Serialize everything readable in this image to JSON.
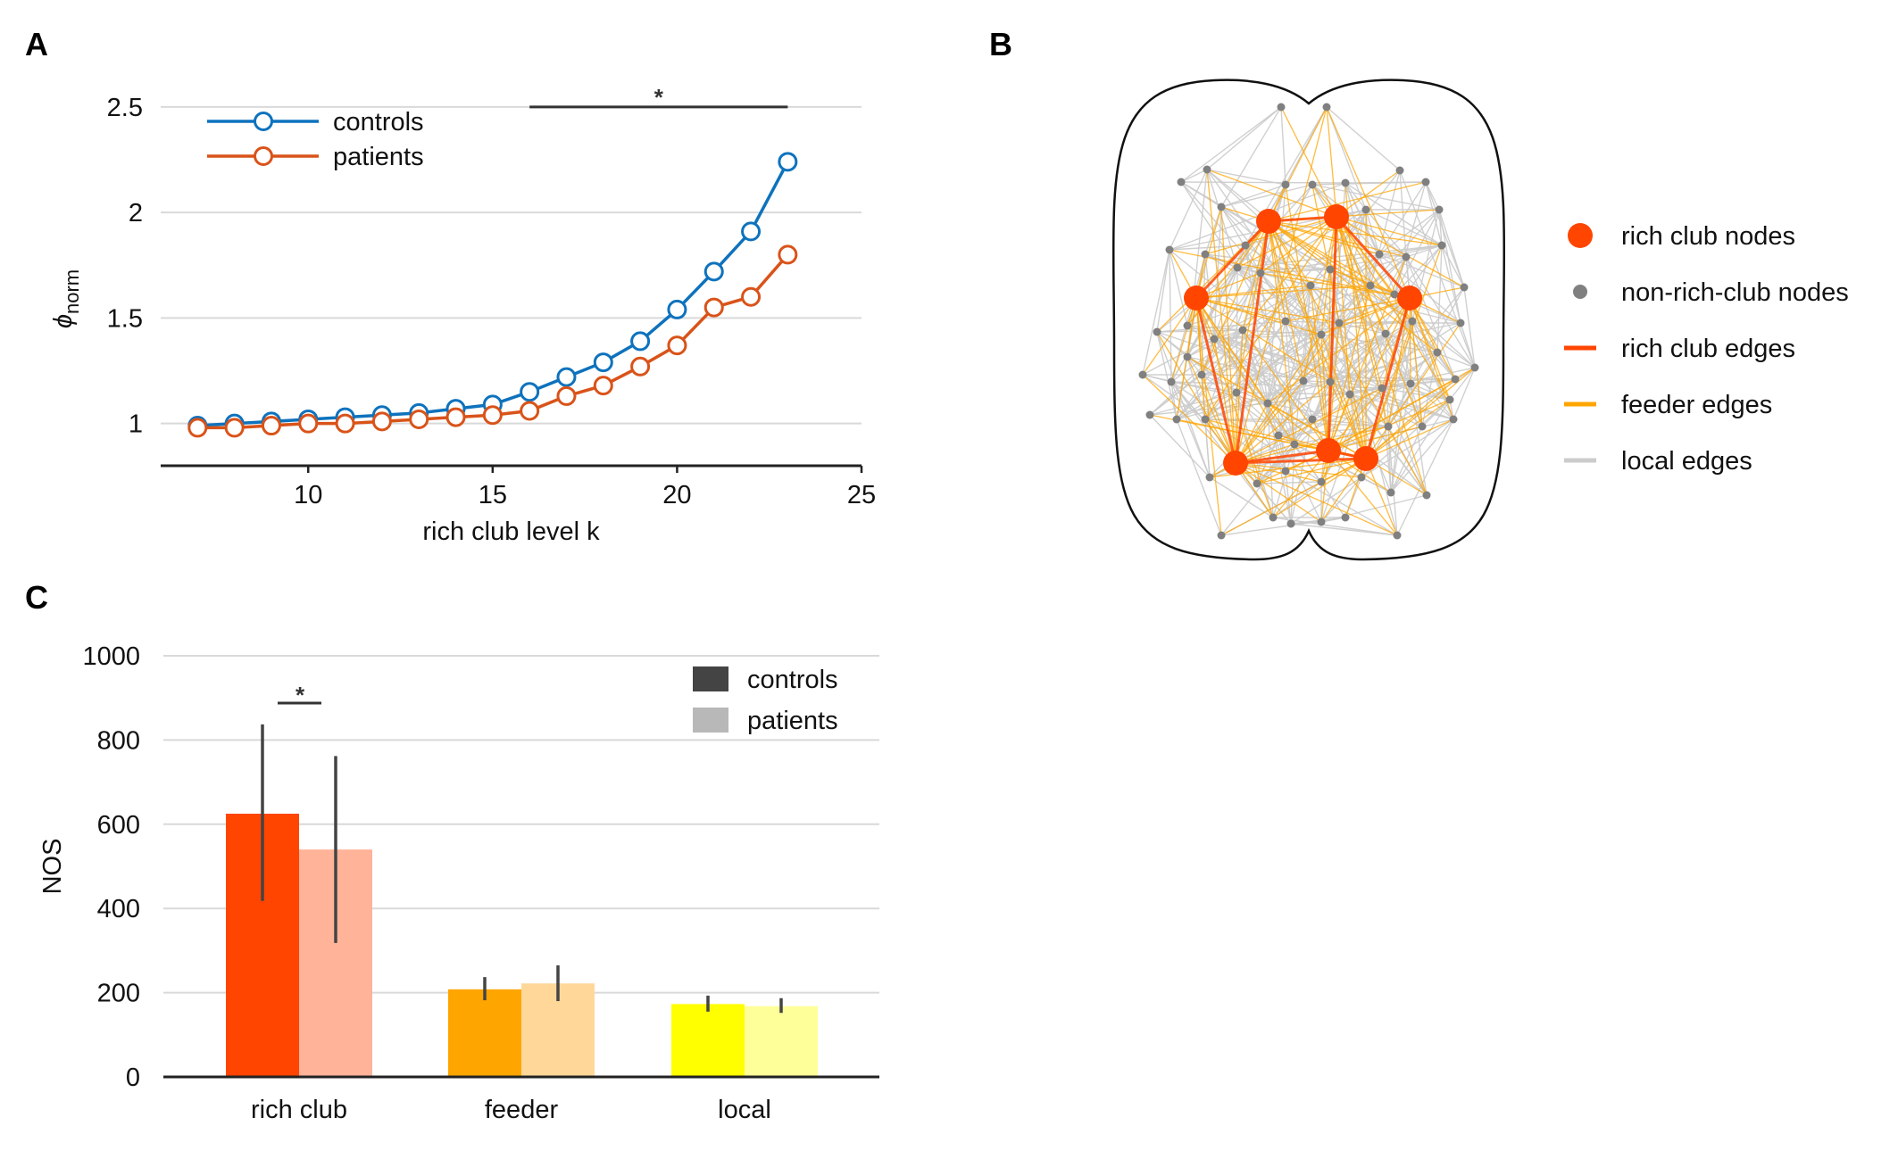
{
  "panels": {
    "a": "A",
    "b": "B",
    "c": "C"
  },
  "colors": {
    "controls": "#0e72bd",
    "patients": "#d95319",
    "rich_club": "#ff4500",
    "rich_club_light": "#ffb399",
    "feeder": "#ffa500",
    "feeder_light": "#ffd899",
    "local": "#ffff00",
    "local_light": "#ffff99",
    "grid": "#d9d9d9",
    "axis": "#222222",
    "node_gray": "#808080",
    "edge_gray": "#cccccc"
  },
  "chart_data": [
    {
      "type": "line",
      "panel": "A",
      "xlabel": "rich club level k",
      "ylabel": "ϕ",
      "ylabel_sub": "norm",
      "xlim": [
        6,
        25
      ],
      "ylim": [
        0.8,
        2.55
      ],
      "xticks": [
        "10",
        "15",
        "20",
        "25"
      ],
      "yticks": [
        "1",
        "1.5",
        "2",
        "2.5"
      ],
      "grid": true,
      "legend": "top-left",
      "x": [
        7,
        8,
        9,
        10,
        11,
        12,
        13,
        14,
        15,
        16,
        17,
        18,
        19,
        20,
        21,
        22,
        23
      ],
      "series": [
        {
          "name": "controls",
          "values": [
            0.99,
            1.0,
            1.01,
            1.02,
            1.03,
            1.04,
            1.05,
            1.07,
            1.09,
            1.15,
            1.22,
            1.29,
            1.39,
            1.54,
            1.72,
            1.91,
            2.24
          ]
        },
        {
          "name": "patients",
          "values": [
            0.98,
            0.98,
            0.99,
            1.0,
            1.0,
            1.01,
            1.02,
            1.03,
            1.04,
            1.06,
            1.13,
            1.18,
            1.27,
            1.37,
            1.55,
            1.6,
            1.8
          ]
        }
      ],
      "significance": {
        "label": "*",
        "x_range": [
          16,
          23
        ],
        "y": 2.5
      }
    },
    {
      "type": "bar",
      "panel": "C",
      "ylabel": "NOS",
      "ylim": [
        0,
        1000
      ],
      "yticks": [
        "0",
        "200",
        "400",
        "600",
        "800",
        "1000"
      ],
      "categories": [
        "rich club",
        "feeder",
        "local"
      ],
      "grid": true,
      "legend": "top-right",
      "series": [
        {
          "name": "controls",
          "values": [
            625,
            208,
            173
          ],
          "err_low": [
            418,
            182,
            155
          ],
          "err_high": [
            837,
            237,
            193
          ]
        },
        {
          "name": "patients",
          "values": [
            540,
            222,
            168
          ],
          "err_low": [
            318,
            180,
            152
          ],
          "err_high": [
            762,
            265,
            187
          ]
        }
      ],
      "significance": {
        "label": "*",
        "category": "rich club"
      }
    }
  ],
  "diagram_legend": [
    {
      "label": "rich club nodes",
      "kind": "big-dot",
      "color": "#ff4500"
    },
    {
      "label": "non-rich-club nodes",
      "kind": "small-dot",
      "color": "#808080"
    },
    {
      "label": "rich club edges",
      "kind": "line",
      "color": "#ff4500"
    },
    {
      "label": "feeder edges",
      "kind": "line",
      "color": "#ffa500"
    },
    {
      "label": "local edges",
      "kind": "line",
      "color": "#cccccc"
    }
  ]
}
